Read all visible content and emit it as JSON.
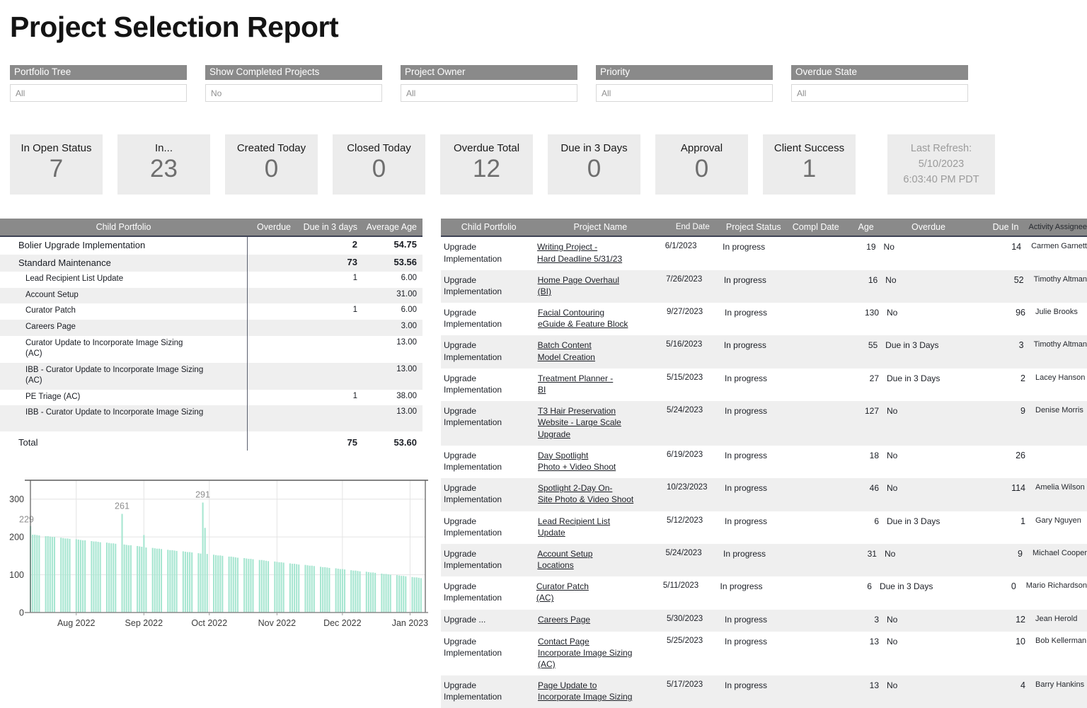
{
  "title": "Project Selection Report",
  "filters": [
    {
      "label": "Portfolio Tree",
      "value": "All"
    },
    {
      "label": "Show Completed Projects",
      "value": "No"
    },
    {
      "label": "Project Owner",
      "value": "All"
    },
    {
      "label": "Priority",
      "value": "All"
    },
    {
      "label": "Overdue State",
      "value": "All"
    }
  ],
  "kpis": [
    {
      "label": "In Open Status",
      "value": "7"
    },
    {
      "label": "In...",
      "value": "23"
    },
    {
      "label": "Created Today",
      "value": "0"
    },
    {
      "label": "Closed Today",
      "value": "0"
    },
    {
      "label": "Overdue Total",
      "value": "12"
    },
    {
      "label": "Due in 3 Days",
      "value": "0"
    },
    {
      "label": "Approval",
      "value": "0"
    },
    {
      "label": "Client Success",
      "value": "1"
    }
  ],
  "last_refresh": {
    "line1": "Last Refresh:",
    "line2": "5/10/2023",
    "line3": "6:03:40 PM PDT"
  },
  "summary_table": {
    "headers": {
      "name": "Child Portfolio",
      "overdue": "Overdue",
      "due3": "Due in 3 days",
      "avg": "Average Age"
    },
    "rows": [
      {
        "name": "Bolier Upgrade Implementation",
        "name2": "",
        "overdue": "",
        "due3": "2",
        "avg": "54.75",
        "level": 0,
        "bold": true,
        "tall": false
      },
      {
        "name": "Standard Maintenance",
        "name2": "",
        "overdue": "",
        "due3": "73",
        "avg": "53.56",
        "level": 0,
        "bold": true,
        "tall": false
      },
      {
        "name": "Lead Recipient List Update",
        "name2": "",
        "overdue": "",
        "due3": "1",
        "avg": "6.00",
        "level": 1,
        "bold": false,
        "tall": false
      },
      {
        "name": "Account Setup",
        "name2": "",
        "overdue": "",
        "due3": "",
        "avg": "31.00",
        "level": 1,
        "bold": false,
        "tall": false
      },
      {
        "name": "Curator Patch",
        "name2": "",
        "overdue": "",
        "due3": "1",
        "avg": "6.00",
        "level": 1,
        "bold": false,
        "tall": false
      },
      {
        "name": "Careers Page",
        "name2": "",
        "overdue": "",
        "due3": "",
        "avg": "3.00",
        "level": 1,
        "bold": false,
        "tall": false
      },
      {
        "name": "Curator Update to Incorporate Image Sizing",
        "name2": "(AC)",
        "overdue": "",
        "due3": "",
        "avg": "13.00",
        "level": 1,
        "bold": false,
        "tall": false
      },
      {
        "name": "IBB - Curator Update to Incorporate Image Sizing",
        "name2": "(AC)",
        "overdue": "",
        "due3": "",
        "avg": "13.00",
        "level": 1,
        "bold": false,
        "tall": false
      },
      {
        "name": "PE Triage (AC)",
        "name2": "",
        "overdue": "",
        "due3": "1",
        "avg": "38.00",
        "level": 1,
        "bold": false,
        "tall": false
      },
      {
        "name": "IBB - Curator Update to Incorporate Image Sizing",
        "name2": "",
        "overdue": "",
        "due3": "",
        "avg": "13.00",
        "level": 1,
        "bold": false,
        "tall": true
      }
    ],
    "total": {
      "name": "Total",
      "overdue": "",
      "due3": "75",
      "avg": "53.60"
    }
  },
  "projects_table": {
    "headers": {
      "portfolio": "Child Portfolio",
      "project": "Project Name",
      "end": "End Date",
      "status": "Project Status",
      "compl": "Compl Date",
      "age": "Age",
      "overdue": "Overdue",
      "duein": "Due In",
      "assignee": "Activity Assignee"
    },
    "rows": [
      {
        "portfolio": "Upgrade Implementation",
        "project_lines": [
          "Writing Project -",
          "Hard Deadline 5/31/23"
        ],
        "end": "6/1/2023",
        "status": "In progress",
        "compl": "",
        "age": "19",
        "overdue": "No",
        "duein": "14",
        "assignee": "Carmen Garnett"
      },
      {
        "portfolio": "Upgrade Implementation",
        "project_lines": [
          "Home Page Overhaul",
          "(BI)"
        ],
        "end": "7/26/2023",
        "status": "In progress",
        "compl": "",
        "age": "16",
        "overdue": "No",
        "duein": "52",
        "assignee": "Timothy Altman"
      },
      {
        "portfolio": "Upgrade Implementation",
        "project_lines": [
          "Facial Contouring",
          "eGuide & Feature Block"
        ],
        "end": "9/27/2023",
        "status": "In progress",
        "compl": "",
        "age": "130",
        "overdue": "No",
        "duein": "96",
        "assignee": "Julie Brooks"
      },
      {
        "portfolio": "Upgrade Implementation",
        "project_lines": [
          "Batch Content",
          "Model Creation"
        ],
        "end": "5/16/2023",
        "status": "In progress",
        "compl": "",
        "age": "55",
        "overdue": "Due in 3 Days",
        "duein": "3",
        "assignee": "Timothy Altman"
      },
      {
        "portfolio": "Upgrade Implementation",
        "project_lines": [
          "Treatment Planner -",
          "BI"
        ],
        "end": "5/15/2023",
        "status": "In progress",
        "compl": "",
        "age": "27",
        "overdue": "Due in 3 Days",
        "duein": "2",
        "assignee": "Lacey Hanson"
      },
      {
        "portfolio": "Upgrade Implementation",
        "project_lines": [
          "T3 Hair Preservation",
          "Website - Large Scale",
          "Upgrade"
        ],
        "end": "5/24/2023",
        "status": "In progress",
        "compl": "",
        "age": "127",
        "overdue": "No",
        "duein": "9",
        "assignee": "Denise Morris"
      },
      {
        "portfolio": "Upgrade Implementation",
        "project_lines": [
          "Day Spotlight",
          "Photo + Video Shoot"
        ],
        "end": "6/19/2023",
        "status": "In progress",
        "compl": "",
        "age": "18",
        "overdue": "No",
        "duein": "26",
        "assignee": ""
      },
      {
        "portfolio": "Upgrade Implementation",
        "project_lines": [
          "Spotlight 2-Day On-",
          "Site Photo & Video Shoot"
        ],
        "end": "10/23/2023",
        "status": "In progress",
        "compl": "",
        "age": "46",
        "overdue": "No",
        "duein": "114",
        "assignee": "Amelia Wilson"
      },
      {
        "portfolio": "Upgrade Implementation",
        "project_lines": [
          "Lead Recipient List",
          "Update"
        ],
        "end": "5/12/2023",
        "status": "In progress",
        "compl": "",
        "age": "6",
        "overdue": "Due in 3 Days",
        "duein": "1",
        "assignee": "Gary Nguyen"
      },
      {
        "portfolio": "Upgrade Implementation",
        "project_lines": [
          "Account Setup",
          "Locations"
        ],
        "end": "5/24/2023",
        "status": "In progress",
        "compl": "",
        "age": "31",
        "overdue": "No",
        "duein": "9",
        "assignee": "Michael Cooper"
      },
      {
        "portfolio": "Upgrade Implementation",
        "project_lines": [
          " Curator Patch",
          "(AC)"
        ],
        "end": "5/11/2023",
        "status": "In progress",
        "compl": "",
        "age": "6",
        "overdue": "Due in 3 Days",
        "duein": "0",
        "assignee": "Mario Richardson"
      },
      {
        "portfolio": "Upgrade ...",
        "project_lines": [
          "Careers Page"
        ],
        "end": "5/30/2023",
        "status": "In progress",
        "compl": "",
        "age": "3",
        "overdue": "No",
        "duein": "12",
        "assignee": "Jean Herold"
      },
      {
        "portfolio": "Upgrade Implementation",
        "project_lines": [
          "Contact Page",
          "Incorporate Image Sizing",
          "(AC)"
        ],
        "end": "5/25/2023",
        "status": "In progress",
        "compl": "",
        "age": "13",
        "overdue": "No",
        "duein": "10",
        "assignee": "Bob Kellerman"
      },
      {
        "portfolio": "Upgrade Implementation",
        "project_lines": [
          "Page Update to",
          "Incorporate Image Sizing"
        ],
        "end": "5/17/2023",
        "status": "In progress",
        "compl": "",
        "age": "13",
        "overdue": "No",
        "duein": "4",
        "assignee": "Barry Hankins"
      }
    ]
  },
  "chart_data": {
    "type": "bar",
    "x_axis_labels": [
      "Aug 2022",
      "Sep 2022",
      "Oct 2022",
      "Nov 2022",
      "Dec 2022",
      "Jan 2023"
    ],
    "y_ticks": [
      0,
      100,
      200,
      300
    ],
    "ylim": [
      0,
      350
    ],
    "grid": true,
    "bar_color": "#a7e6d1",
    "axis_color": "#5b5b5b",
    "values": [
      229,
      206,
      206,
      205,
      204,
      202,
      202,
      201,
      200,
      200,
      198,
      197,
      196,
      196,
      195,
      194,
      193,
      192,
      191,
      191,
      189,
      188,
      188,
      187,
      186,
      185,
      184,
      183,
      183,
      182,
      261,
      180,
      179,
      178,
      178,
      176,
      175,
      174,
      205,
      172,
      171,
      170,
      169,
      169,
      168,
      166,
      165,
      165,
      164,
      163,
      162,
      161,
      160,
      160,
      159,
      157,
      156,
      291,
      224,
      155,
      153,
      152,
      151,
      151,
      150,
      148,
      148,
      147,
      146,
      145,
      144,
      143,
      142,
      142,
      141,
      139,
      139,
      138,
      137,
      136,
      135,
      134,
      133,
      133,
      132,
      130,
      129,
      129,
      128,
      127,
      126,
      125,
      124,
      124,
      123,
      121,
      120,
      120,
      119,
      118,
      117,
      116,
      115,
      115,
      114,
      112,
      111,
      111,
      110,
      109,
      108,
      107,
      106,
      106,
      105,
      103,
      102,
      102,
      101,
      100,
      99,
      98,
      97,
      97,
      96,
      94,
      93,
      93,
      92,
      91
    ],
    "annotations": [
      {
        "index": 0,
        "label": "229"
      },
      {
        "index": 30,
        "label": "261"
      },
      {
        "index": 57,
        "label": "291"
      }
    ]
  },
  "ui_colors": {
    "header_gray": "#8a8a8a",
    "card_gray": "#ececec",
    "row_stripe": "#efefef",
    "bar_mint": "#a7e6d1"
  }
}
